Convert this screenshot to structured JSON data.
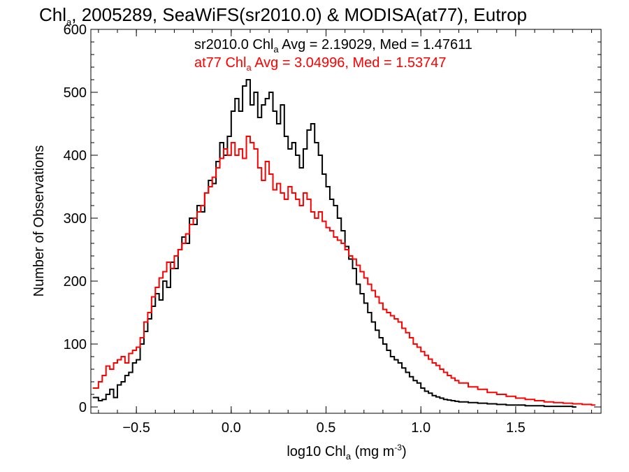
{
  "chart_data": {
    "type": "histogram-step",
    "title": {
      "prefix": "Chl",
      "sub": "a",
      "rest": ", 2005289, SeaWiFS(sr2010.0) & MODISA(at77), Eutrop"
    },
    "xlabel": {
      "prefix": "log10 Chl",
      "sub": "a",
      "mid": " (mg m",
      "sup": "-3",
      "end": ")"
    },
    "ylabel": "Number of Observations",
    "xlim": [
      -0.74,
      1.95
    ],
    "ylim": [
      -10,
      600
    ],
    "xticks": [
      -0.5,
      0.0,
      0.5,
      1.0,
      1.5
    ],
    "xtick_labels": [
      "−0.5",
      "0.0",
      "0.5",
      "1.0",
      "1.5"
    ],
    "yticks": [
      0,
      100,
      200,
      300,
      400,
      500,
      600
    ],
    "ytick_labels": [
      "0",
      "100",
      "200",
      "300",
      "400",
      "500",
      "600"
    ],
    "legend": [
      {
        "color": "#000000",
        "pre": "sr2010.0 Chl",
        "sub": "a",
        "post": " Avg = 2.19029, Med = 1.47611"
      },
      {
        "color": "#ff0000",
        "pre": "at77 Chl",
        "sub": "a",
        "post": " Avg = 3.04996, Med = 1.53747"
      }
    ],
    "series": [
      {
        "color": "#000000",
        "points": [
          [
            -0.73,
            15
          ],
          [
            -0.7,
            10
          ],
          [
            -0.68,
            12
          ],
          [
            -0.66,
            20
          ],
          [
            -0.64,
            28
          ],
          [
            -0.62,
            15
          ],
          [
            -0.6,
            35
          ],
          [
            -0.58,
            40
          ],
          [
            -0.56,
            50
          ],
          [
            -0.54,
            55
          ],
          [
            -0.52,
            70
          ],
          [
            -0.5,
            75
          ],
          [
            -0.48,
            100
          ],
          [
            -0.46,
            120
          ],
          [
            -0.44,
            140
          ],
          [
            -0.42,
            160
          ],
          [
            -0.4,
            180
          ],
          [
            -0.38,
            170
          ],
          [
            -0.36,
            200
          ],
          [
            -0.34,
            190
          ],
          [
            -0.32,
            230
          ],
          [
            -0.3,
            220
          ],
          [
            -0.28,
            250
          ],
          [
            -0.26,
            270
          ],
          [
            -0.24,
            260
          ],
          [
            -0.22,
            300
          ],
          [
            -0.2,
            290
          ],
          [
            -0.18,
            320
          ],
          [
            -0.16,
            310
          ],
          [
            -0.14,
            340
          ],
          [
            -0.12,
            360
          ],
          [
            -0.1,
            355
          ],
          [
            -0.08,
            390
          ],
          [
            -0.06,
            420
          ],
          [
            -0.04,
            400
          ],
          [
            -0.02,
            430
          ],
          [
            0.0,
            470
          ],
          [
            0.02,
            490
          ],
          [
            0.04,
            470
          ],
          [
            0.06,
            510
          ],
          [
            0.08,
            520
          ],
          [
            0.1,
            480
          ],
          [
            0.12,
            500
          ],
          [
            0.14,
            460
          ],
          [
            0.16,
            480
          ],
          [
            0.18,
            490
          ],
          [
            0.2,
            500
          ],
          [
            0.22,
            470
          ],
          [
            0.24,
            450
          ],
          [
            0.26,
            480
          ],
          [
            0.28,
            430
          ],
          [
            0.3,
            410
          ],
          [
            0.32,
            420
          ],
          [
            0.34,
            400
          ],
          [
            0.36,
            380
          ],
          [
            0.38,
            410
          ],
          [
            0.4,
            440
          ],
          [
            0.42,
            450
          ],
          [
            0.44,
            420
          ],
          [
            0.46,
            400
          ],
          [
            0.48,
            370
          ],
          [
            0.5,
            350
          ],
          [
            0.52,
            330
          ],
          [
            0.54,
            320
          ],
          [
            0.56,
            300
          ],
          [
            0.58,
            280
          ],
          [
            0.6,
            255
          ],
          [
            0.62,
            235
          ],
          [
            0.64,
            220
          ],
          [
            0.66,
            195
          ],
          [
            0.68,
            180
          ],
          [
            0.7,
            165
          ],
          [
            0.72,
            150
          ],
          [
            0.74,
            135
          ],
          [
            0.76,
            122
          ],
          [
            0.78,
            110
          ],
          [
            0.8,
            100
          ],
          [
            0.82,
            90
          ],
          [
            0.84,
            80
          ],
          [
            0.86,
            75
          ],
          [
            0.88,
            70
          ],
          [
            0.9,
            62
          ],
          [
            0.92,
            55
          ],
          [
            0.94,
            48
          ],
          [
            0.96,
            42
          ],
          [
            0.98,
            38
          ],
          [
            1.0,
            30
          ],
          [
            1.02,
            25
          ],
          [
            1.04,
            22
          ],
          [
            1.06,
            18
          ],
          [
            1.08,
            16
          ],
          [
            1.1,
            14
          ],
          [
            1.12,
            12
          ],
          [
            1.14,
            11
          ],
          [
            1.16,
            10
          ],
          [
            1.18,
            9
          ],
          [
            1.2,
            8
          ],
          [
            1.25,
            7
          ],
          [
            1.3,
            6
          ],
          [
            1.35,
            5
          ],
          [
            1.4,
            4
          ],
          [
            1.45,
            3
          ],
          [
            1.5,
            3
          ],
          [
            1.55,
            2
          ],
          [
            1.6,
            2
          ],
          [
            1.65,
            1
          ],
          [
            1.7,
            1
          ],
          [
            1.75,
            1
          ],
          [
            1.8,
            0
          ]
        ]
      },
      {
        "color": "#ff0000",
        "points": [
          [
            -0.73,
            30
          ],
          [
            -0.7,
            40
          ],
          [
            -0.68,
            50
          ],
          [
            -0.66,
            65
          ],
          [
            -0.64,
            60
          ],
          [
            -0.62,
            70
          ],
          [
            -0.6,
            75
          ],
          [
            -0.58,
            80
          ],
          [
            -0.56,
            70
          ],
          [
            -0.54,
            85
          ],
          [
            -0.52,
            90
          ],
          [
            -0.5,
            95
          ],
          [
            -0.48,
            110
          ],
          [
            -0.46,
            135
          ],
          [
            -0.44,
            150
          ],
          [
            -0.42,
            175
          ],
          [
            -0.4,
            190
          ],
          [
            -0.38,
            205
          ],
          [
            -0.36,
            215
          ],
          [
            -0.34,
            230
          ],
          [
            -0.32,
            220
          ],
          [
            -0.3,
            240
          ],
          [
            -0.28,
            250
          ],
          [
            -0.26,
            260
          ],
          [
            -0.24,
            275
          ],
          [
            -0.22,
            290
          ],
          [
            -0.2,
            300
          ],
          [
            -0.18,
            310
          ],
          [
            -0.16,
            320
          ],
          [
            -0.14,
            340
          ],
          [
            -0.12,
            350
          ],
          [
            -0.1,
            365
          ],
          [
            -0.08,
            380
          ],
          [
            -0.06,
            395
          ],
          [
            -0.04,
            410
          ],
          [
            -0.02,
            400
          ],
          [
            0.0,
            420
          ],
          [
            0.02,
            400
          ],
          [
            0.04,
            410
          ],
          [
            0.06,
            395
          ],
          [
            0.08,
            430
          ],
          [
            0.1,
            420
          ],
          [
            0.12,
            410
          ],
          [
            0.14,
            380
          ],
          [
            0.16,
            360
          ],
          [
            0.18,
            390
          ],
          [
            0.2,
            370
          ],
          [
            0.22,
            345
          ],
          [
            0.24,
            355
          ],
          [
            0.26,
            340
          ],
          [
            0.28,
            330
          ],
          [
            0.3,
            350
          ],
          [
            0.32,
            340
          ],
          [
            0.34,
            330
          ],
          [
            0.36,
            320
          ],
          [
            0.38,
            340
          ],
          [
            0.4,
            330
          ],
          [
            0.42,
            310
          ],
          [
            0.44,
            300
          ],
          [
            0.46,
            310
          ],
          [
            0.48,
            295
          ],
          [
            0.5,
            285
          ],
          [
            0.52,
            280
          ],
          [
            0.54,
            270
          ],
          [
            0.56,
            265
          ],
          [
            0.58,
            260
          ],
          [
            0.6,
            250
          ],
          [
            0.62,
            240
          ],
          [
            0.64,
            235
          ],
          [
            0.66,
            225
          ],
          [
            0.68,
            215
          ],
          [
            0.7,
            205
          ],
          [
            0.72,
            195
          ],
          [
            0.74,
            185
          ],
          [
            0.76,
            175
          ],
          [
            0.78,
            165
          ],
          [
            0.8,
            155
          ],
          [
            0.82,
            150
          ],
          [
            0.84,
            145
          ],
          [
            0.86,
            140
          ],
          [
            0.88,
            135
          ],
          [
            0.9,
            125
          ],
          [
            0.92,
            118
          ],
          [
            0.94,
            110
          ],
          [
            0.96,
            100
          ],
          [
            0.98,
            95
          ],
          [
            1.0,
            88
          ],
          [
            1.02,
            82
          ],
          [
            1.04,
            76
          ],
          [
            1.06,
            70
          ],
          [
            1.08,
            66
          ],
          [
            1.1,
            60
          ],
          [
            1.12,
            55
          ],
          [
            1.14,
            50
          ],
          [
            1.16,
            46
          ],
          [
            1.18,
            42
          ],
          [
            1.2,
            38
          ],
          [
            1.25,
            32
          ],
          [
            1.3,
            28
          ],
          [
            1.35,
            23
          ],
          [
            1.4,
            20
          ],
          [
            1.45,
            17
          ],
          [
            1.5,
            14
          ],
          [
            1.55,
            12
          ],
          [
            1.6,
            10
          ],
          [
            1.65,
            8
          ],
          [
            1.7,
            7
          ],
          [
            1.75,
            6
          ],
          [
            1.8,
            5
          ],
          [
            1.85,
            4
          ],
          [
            1.9,
            3
          ]
        ]
      }
    ]
  }
}
